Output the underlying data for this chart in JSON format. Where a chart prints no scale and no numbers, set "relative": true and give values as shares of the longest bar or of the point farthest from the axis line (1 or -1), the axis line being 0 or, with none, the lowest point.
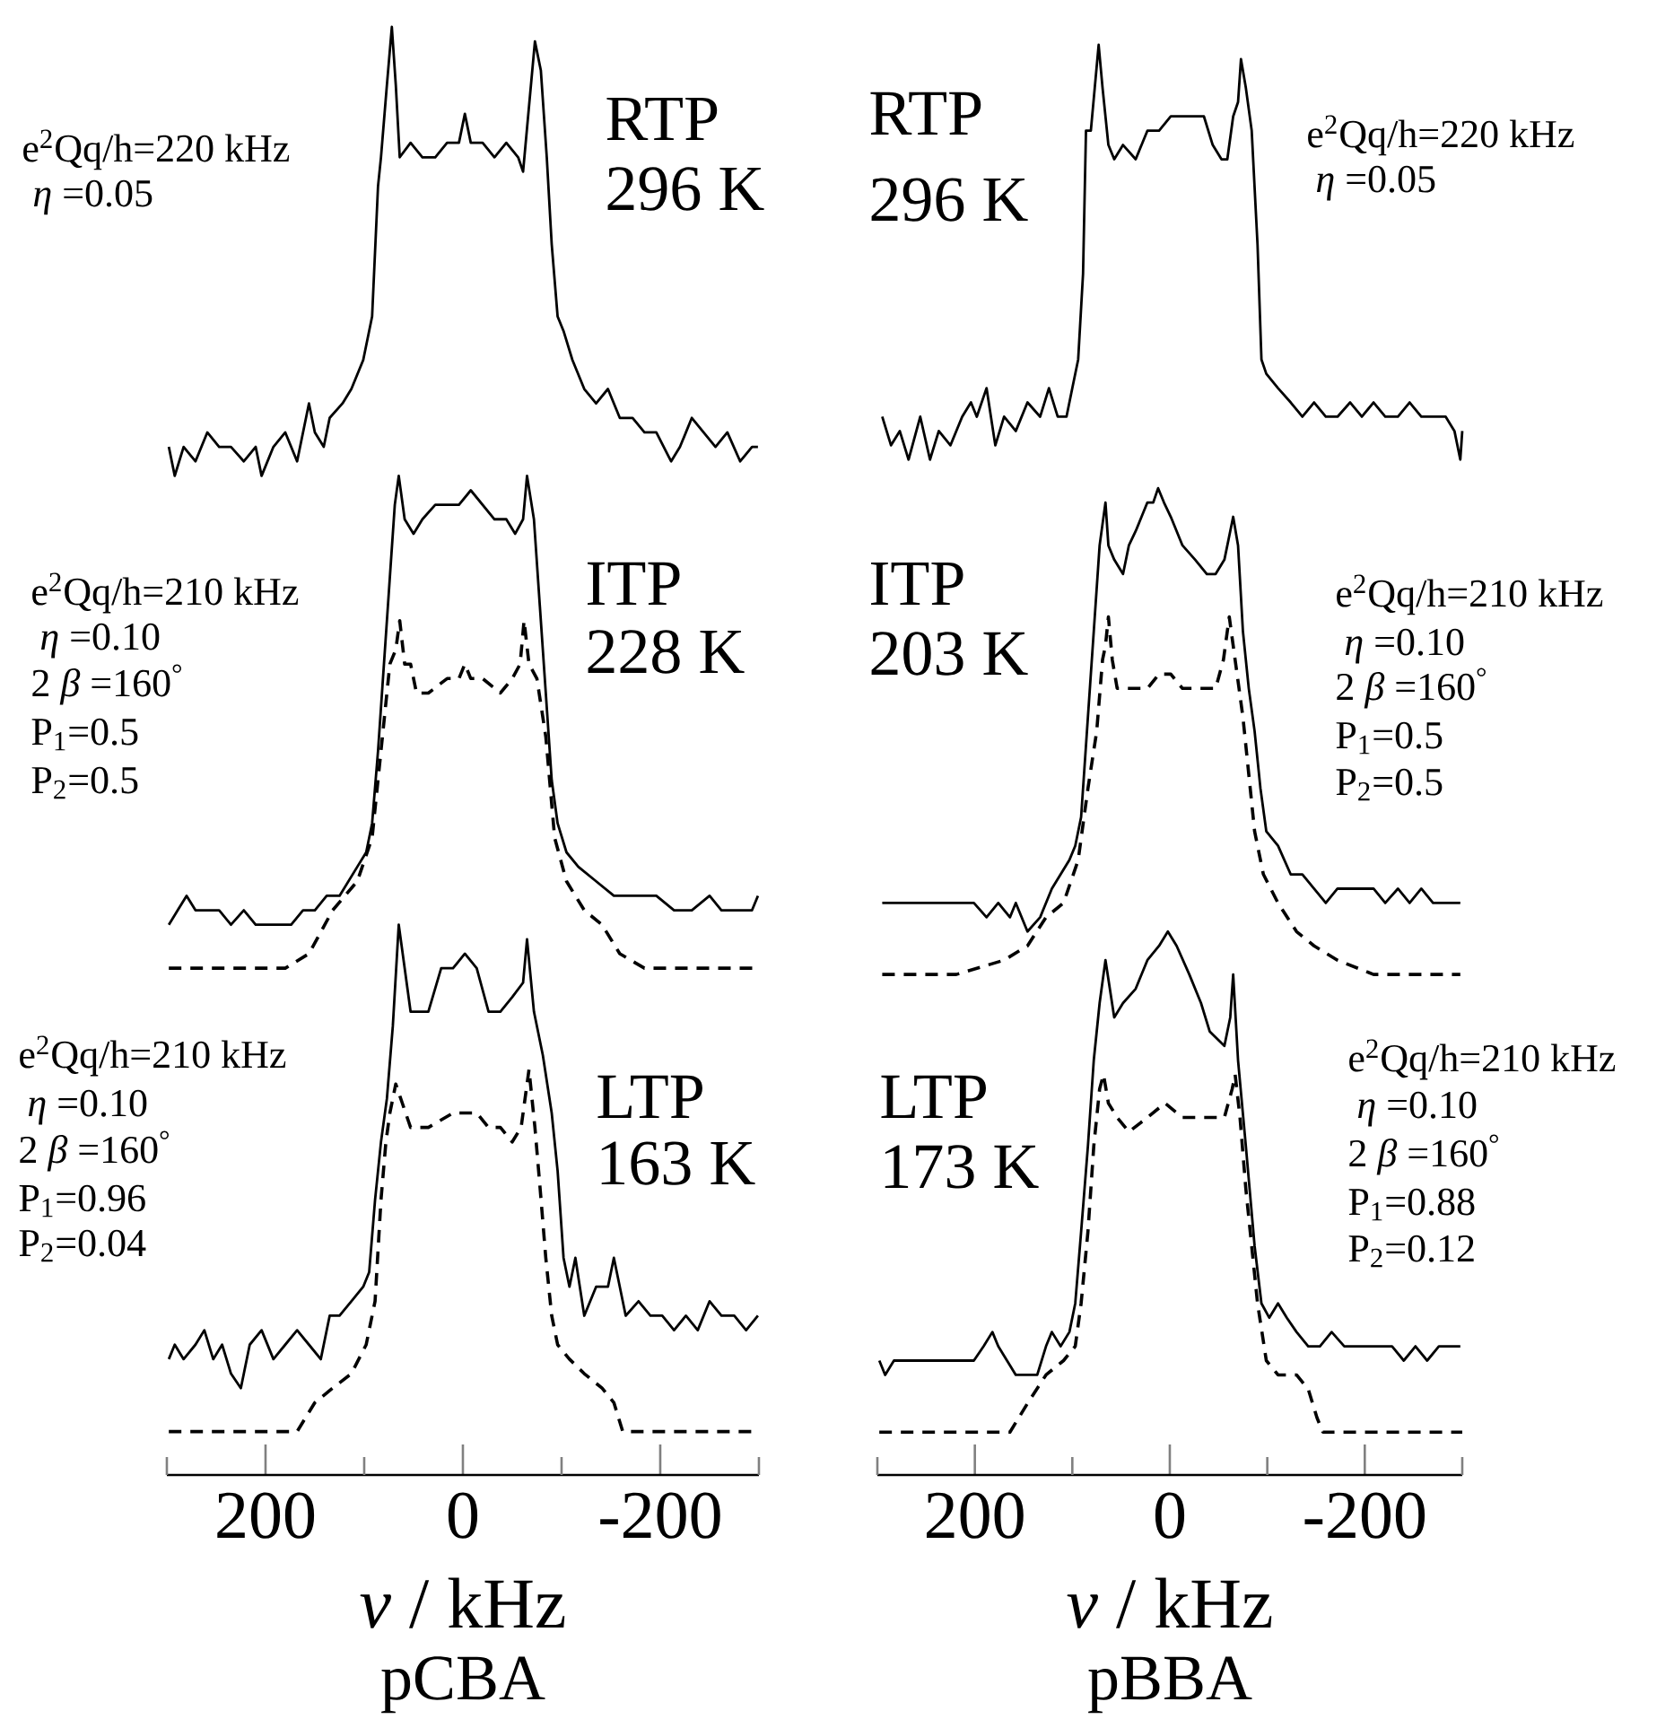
{
  "chart_data": [
    {
      "type": "line",
      "relative": true,
      "title": "pCBA",
      "xlabel": "*ν*  / kHz",
      "xlim": [
        300,
        -300
      ],
      "xticks": [
        {
          "value": 300,
          "label": null
        },
        200,
        {
          "value": 100,
          "label": null
        },
        0,
        {
          "value": -100,
          "label": null
        },
        -200,
        {
          "value": -300,
          "label": null
        }
      ],
      "annotations": [
        "RTP",
        "296 K",
        "e$^{2}$Qq/h=220 kHz",
        "*η* =0.05",
        "ITP",
        "228 K",
        "e$^{2}$Qq/h=210 kHz",
        "*η* =0.10",
        "2 *β* =160$^{°}$",
        "P$_{1}$=0.5",
        "P$_{2}$=0.5",
        "LTP",
        "163 K",
        "e$^{2}$Qq/h=210 kHz",
        "*η* =0.10",
        "2 *β* =160$^{°}$",
        "P$_{1}$=0.96",
        "P$_{2}$=0.04"
      ],
      "series": [
        {
          "type": "line",
          "color": "#000000",
          "line_style": "solid",
          "x": [
            298,
            292,
            283,
            271,
            259,
            247,
            235,
            222,
            210,
            204,
            192,
            180,
            168,
            156,
            150,
            141,
            135,
            122,
            113,
            101,
            92,
            86,
            83,
            77,
            72,
            68,
            64,
            53,
            41,
            28,
            16,
            4,
            -2,
            -8,
            -20,
            -32,
            -44,
            -56,
            -61,
            -65,
            -73,
            -79,
            -85,
            -90,
            -96,
            -102,
            -111,
            -123,
            -135,
            -147,
            -159,
            -172,
            -184,
            -196,
            -211,
            -220,
            -232,
            -244,
            -256,
            -268,
            -281,
            -293,
            -299
          ],
          "values": [
            0.71,
            0.69,
            0.71,
            0.7,
            0.72,
            0.71,
            0.71,
            0.7,
            0.71,
            0.69,
            0.71,
            0.72,
            0.7,
            0.74,
            0.72,
            0.71,
            0.73,
            0.74,
            0.75,
            0.77,
            0.8,
            0.89,
            0.91,
            0.96,
            1.0,
            0.96,
            0.91,
            0.92,
            0.91,
            0.91,
            0.92,
            0.92,
            0.94,
            0.92,
            0.92,
            0.91,
            0.92,
            0.91,
            0.9,
            0.93,
            0.99,
            0.97,
            0.91,
            0.85,
            0.8,
            0.79,
            0.77,
            0.75,
            0.74,
            0.75,
            0.73,
            0.73,
            0.72,
            0.72,
            0.7,
            0.71,
            0.73,
            0.72,
            0.71,
            0.72,
            0.7,
            0.71,
            0.71
          ]
        },
        {
          "type": "line",
          "color": "#000000",
          "line_style": "solid",
          "x": [
            298,
            289,
            280,
            271,
            259,
            247,
            235,
            222,
            210,
            198,
            186,
            174,
            162,
            150,
            138,
            125,
            116,
            107,
            98,
            92,
            86,
            80,
            74,
            69,
            65,
            59,
            50,
            41,
            28,
            16,
            4,
            -8,
            -20,
            -32,
            -44,
            -53,
            -61,
            -65,
            -72,
            -78,
            -84,
            -90,
            -96,
            -105,
            -117,
            -135,
            -153,
            -172,
            -196,
            -214,
            -232,
            -250,
            -262,
            -281,
            -293,
            -299
          ],
          "values": [
            0.38,
            0.39,
            0.4,
            0.39,
            0.39,
            0.39,
            0.38,
            0.39,
            0.38,
            0.38,
            0.38,
            0.38,
            0.39,
            0.39,
            0.4,
            0.4,
            0.41,
            0.42,
            0.43,
            0.45,
            0.5,
            0.56,
            0.62,
            0.67,
            0.69,
            0.66,
            0.65,
            0.66,
            0.67,
            0.67,
            0.67,
            0.68,
            0.67,
            0.66,
            0.66,
            0.65,
            0.66,
            0.69,
            0.66,
            0.6,
            0.54,
            0.48,
            0.45,
            0.43,
            0.42,
            0.41,
            0.4,
            0.4,
            0.4,
            0.39,
            0.39,
            0.4,
            0.39,
            0.39,
            0.39,
            0.4
          ]
        },
        {
          "type": "line",
          "color": "#000000",
          "line_style": "dashed",
          "x": [
            298,
            259,
            216,
            180,
            156,
            132,
            107,
            92,
            83,
            74,
            68,
            64,
            59,
            53,
            47,
            35,
            16,
            4,
            -2,
            -8,
            -20,
            -38,
            -50,
            -58,
            -62,
            -67,
            -75,
            -84,
            -93,
            -105,
            -123,
            -141,
            -159,
            -184,
            -226,
            -299
          ],
          "values": [
            0.35,
            0.35,
            0.35,
            0.35,
            0.36,
            0.39,
            0.41,
            0.44,
            0.5,
            0.56,
            0.57,
            0.59,
            0.56,
            0.56,
            0.54,
            0.54,
            0.55,
            0.55,
            0.56,
            0.55,
            0.55,
            0.54,
            0.55,
            0.56,
            0.59,
            0.56,
            0.55,
            0.51,
            0.44,
            0.41,
            0.39,
            0.38,
            0.36,
            0.35,
            0.35,
            0.35
          ]
        },
        {
          "type": "line",
          "color": "#000000",
          "line_style": "solid",
          "x": [
            298,
            292,
            283,
            271,
            262,
            253,
            244,
            235,
            225,
            216,
            204,
            192,
            180,
            168,
            156,
            144,
            135,
            125,
            113,
            101,
            95,
            89,
            83,
            77,
            71,
            65,
            53,
            35,
            22,
            10,
            -2,
            -14,
            -26,
            -38,
            -50,
            -61,
            -65,
            -72,
            -81,
            -90,
            -96,
            -102,
            -108,
            -114,
            -123,
            -135,
            -147,
            -153,
            -165,
            -178,
            -190,
            -202,
            -214,
            -226,
            -238,
            -250,
            -262,
            -275,
            -287,
            -299
          ],
          "values": [
            0.08,
            0.09,
            0.08,
            0.09,
            0.1,
            0.08,
            0.09,
            0.07,
            0.06,
            0.09,
            0.1,
            0.08,
            0.09,
            0.1,
            0.09,
            0.08,
            0.11,
            0.11,
            0.12,
            0.13,
            0.14,
            0.19,
            0.23,
            0.26,
            0.31,
            0.38,
            0.32,
            0.32,
            0.35,
            0.35,
            0.36,
            0.35,
            0.32,
            0.32,
            0.33,
            0.34,
            0.37,
            0.32,
            0.29,
            0.25,
            0.21,
            0.15,
            0.13,
            0.15,
            0.11,
            0.13,
            0.13,
            0.15,
            0.11,
            0.12,
            0.11,
            0.11,
            0.1,
            0.11,
            0.1,
            0.12,
            0.11,
            0.11,
            0.1,
            0.11
          ]
        },
        {
          "type": "line",
          "color": "#000000",
          "line_style": "dashed",
          "x": [
            298,
            168,
            159,
            150,
            132,
            113,
            98,
            89,
            83,
            78,
            74,
            68,
            53,
            35,
            10,
            -14,
            -26,
            -38,
            -50,
            -59,
            -67,
            -73,
            -78,
            -84,
            -90,
            -96,
            -108,
            -123,
            -141,
            -153,
            -162,
            -299
          ],
          "values": [
            0.03,
            0.03,
            0.04,
            0.05,
            0.06,
            0.07,
            0.09,
            0.12,
            0.19,
            0.23,
            0.25,
            0.27,
            0.24,
            0.24,
            0.25,
            0.25,
            0.24,
            0.24,
            0.23,
            0.24,
            0.28,
            0.24,
            0.2,
            0.15,
            0.11,
            0.09,
            0.08,
            0.07,
            0.06,
            0.05,
            0.03,
            0.03
          ]
        }
      ]
    },
    {
      "type": "line",
      "relative": true,
      "title": "pBBA",
      "xlabel": "*ν*  / kHz",
      "xlim": [
        300,
        -300
      ],
      "xticks": [
        {
          "value": 300,
          "label": null
        },
        200,
        {
          "value": 100,
          "label": null
        },
        0,
        {
          "value": -100,
          "label": null
        },
        -200,
        {
          "value": -300,
          "label": null
        }
      ],
      "annotations": [
        "RTP",
        "296 K",
        "e$^{2}$Qq/h=220 kHz",
        "*η* =0.05",
        "ITP",
        "203 K",
        "e$^{2}$Qq/h=210 kHz",
        "*η* =0.10",
        "2 *β* =160$^{°}$",
        "P$_{1}$=0.5",
        "P$_{2}$=0.5",
        "LTP",
        "173 K",
        "e$^{2}$Qq/h=210 kHz",
        "*η* =0.10",
        "2 *β* =160$^{°}$",
        "P$_{1}$=0.88",
        "P$_{2}$=0.12"
      ],
      "series": [
        {
          "type": "line",
          "color": "#000000",
          "line_style": "solid",
          "x": [
            295,
            286,
            277,
            268,
            256,
            246,
            237,
            225,
            213,
            204,
            198,
            188,
            179,
            170,
            158,
            146,
            133,
            124,
            115,
            106,
            100,
            94,
            89,
            86,
            81,
            77,
            73,
            69,
            63,
            57,
            48,
            35,
            23,
            11,
            -1,
            -13,
            -26,
            -35,
            -44,
            -53,
            -59,
            -65,
            -70,
            -73,
            -78,
            -84,
            -90,
            -94,
            -99,
            -111,
            -124,
            -136,
            -148,
            -160,
            -172,
            -185,
            -197,
            -209,
            -221,
            -234,
            -246,
            -258,
            -270,
            -283,
            -292,
            -298,
            -300
          ],
          "values": [
            0.74,
            0.72,
            0.73,
            0.71,
            0.74,
            0.71,
            0.73,
            0.72,
            0.74,
            0.75,
            0.74,
            0.76,
            0.72,
            0.74,
            0.73,
            0.75,
            0.74,
            0.76,
            0.74,
            0.74,
            0.76,
            0.78,
            0.84,
            0.94,
            0.94,
            0.97,
            1.0,
            0.97,
            0.93,
            0.92,
            0.93,
            0.92,
            0.94,
            0.94,
            0.95,
            0.95,
            0.95,
            0.95,
            0.93,
            0.92,
            0.92,
            0.95,
            0.96,
            0.99,
            0.97,
            0.94,
            0.86,
            0.78,
            0.77,
            0.76,
            0.75,
            0.74,
            0.75,
            0.74,
            0.74,
            0.75,
            0.74,
            0.75,
            0.74,
            0.74,
            0.75,
            0.74,
            0.74,
            0.74,
            0.73,
            0.71,
            0.73
          ]
        },
        {
          "type": "line",
          "color": "#000000",
          "line_style": "solid",
          "x": [
            295,
            286,
            274,
            262,
            250,
            237,
            225,
            213,
            201,
            188,
            176,
            164,
            158,
            146,
            133,
            121,
            112,
            103,
            97,
            91,
            84,
            78,
            72,
            66,
            63,
            57,
            48,
            42,
            35,
            29,
            23,
            17,
            12,
            6,
            -1,
            -13,
            -26,
            -38,
            -47,
            -56,
            -62,
            -65,
            -70,
            -75,
            -81,
            -87,
            -93,
            -99,
            -111,
            -124,
            -136,
            -148,
            -160,
            -172,
            -185,
            -197,
            -209,
            -221,
            -234,
            -246,
            -258,
            -270,
            -283,
            -298
          ],
          "values": [
            0.4,
            0.4,
            0.4,
            0.4,
            0.4,
            0.4,
            0.4,
            0.4,
            0.4,
            0.39,
            0.4,
            0.39,
            0.4,
            0.38,
            0.39,
            0.41,
            0.42,
            0.43,
            0.44,
            0.46,
            0.53,
            0.59,
            0.65,
            0.68,
            0.65,
            0.64,
            0.63,
            0.65,
            0.66,
            0.67,
            0.68,
            0.68,
            0.69,
            0.68,
            0.67,
            0.65,
            0.64,
            0.63,
            0.63,
            0.64,
            0.66,
            0.67,
            0.65,
            0.59,
            0.55,
            0.52,
            0.48,
            0.45,
            0.44,
            0.42,
            0.42,
            0.41,
            0.4,
            0.41,
            0.41,
            0.41,
            0.41,
            0.4,
            0.41,
            0.4,
            0.41,
            0.4,
            0.4,
            0.4
          ]
        },
        {
          "type": "line",
          "color": "#000000",
          "line_style": "dashed",
          "x": [
            295,
            219,
            170,
            146,
            127,
            109,
            94,
            84,
            75,
            69,
            66,
            63,
            59,
            54,
            42,
            23,
            11,
            -1,
            -13,
            -32,
            -47,
            -55,
            -61,
            -67,
            -75,
            -81,
            -87,
            -96,
            -111,
            -130,
            -148,
            -172,
            -209,
            -298
          ],
          "values": [
            0.35,
            0.35,
            0.36,
            0.37,
            0.39,
            0.4,
            0.43,
            0.48,
            0.52,
            0.57,
            0.58,
            0.6,
            0.57,
            0.55,
            0.55,
            0.55,
            0.56,
            0.56,
            0.55,
            0.55,
            0.55,
            0.57,
            0.6,
            0.57,
            0.53,
            0.49,
            0.45,
            0.42,
            0.4,
            0.38,
            0.37,
            0.36,
            0.35,
            0.35
          ]
        },
        {
          "type": "line",
          "color": "#000000",
          "line_style": "solid",
          "x": [
            298,
            292,
            283,
            274,
            262,
            250,
            237,
            225,
            213,
            201,
            191,
            182,
            176,
            167,
            158,
            149,
            136,
            127,
            121,
            112,
            103,
            97,
            91,
            84,
            78,
            72,
            66,
            57,
            48,
            35,
            23,
            11,
            2,
            -7,
            -20,
            -32,
            -41,
            -56,
            -62,
            -65,
            -70,
            -78,
            -87,
            -94,
            -102,
            -111,
            -120,
            -130,
            -142,
            -154,
            -166,
            -179,
            -191,
            -203,
            -215,
            -228,
            -240,
            -252,
            -264,
            -276,
            -289,
            -298
          ],
          "values": [
            0.08,
            0.07,
            0.08,
            0.08,
            0.08,
            0.08,
            0.08,
            0.08,
            0.08,
            0.08,
            0.09,
            0.1,
            0.09,
            0.08,
            0.07,
            0.07,
            0.07,
            0.09,
            0.1,
            0.09,
            0.1,
            0.12,
            0.17,
            0.23,
            0.29,
            0.33,
            0.36,
            0.32,
            0.33,
            0.34,
            0.36,
            0.37,
            0.38,
            0.37,
            0.35,
            0.33,
            0.31,
            0.3,
            0.32,
            0.35,
            0.29,
            0.23,
            0.16,
            0.12,
            0.11,
            0.12,
            0.11,
            0.1,
            0.09,
            0.09,
            0.1,
            0.09,
            0.09,
            0.09,
            0.09,
            0.09,
            0.08,
            0.09,
            0.08,
            0.09,
            0.09,
            0.09
          ]
        },
        {
          "type": "line",
          "color": "#000000",
          "line_style": "dashed",
          "x": [
            298,
            164,
            155,
            146,
            127,
            109,
            97,
            91,
            84,
            78,
            72,
            68,
            63,
            54,
            42,
            23,
            5,
            -13,
            -32,
            -44,
            -56,
            -64,
            -67,
            -72,
            -78,
            -84,
            -90,
            -99,
            -111,
            -130,
            -142,
            -151,
            -157,
            -300
          ],
          "values": [
            0.03,
            0.03,
            0.04,
            0.05,
            0.07,
            0.08,
            0.09,
            0.12,
            0.17,
            0.23,
            0.27,
            0.28,
            0.26,
            0.25,
            0.24,
            0.25,
            0.26,
            0.25,
            0.25,
            0.25,
            0.25,
            0.27,
            0.28,
            0.25,
            0.2,
            0.16,
            0.12,
            0.08,
            0.07,
            0.07,
            0.06,
            0.04,
            0.03,
            0.03
          ]
        }
      ]
    }
  ]
}
